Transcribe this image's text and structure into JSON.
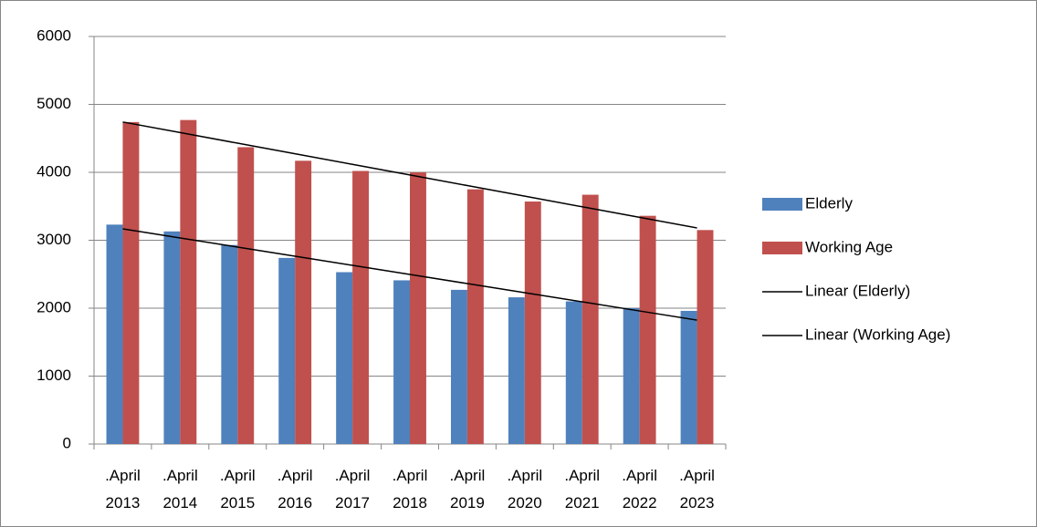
{
  "chart_data": {
    "type": "bar",
    "categories": [
      ".April 2013",
      ".April 2014",
      ".April 2015",
      ".April 2016",
      ".April 2017",
      ".April 2018",
      ".April 2019",
      ".April 2020",
      ".April 2021",
      ".April 2022",
      ".April 2023"
    ],
    "series": [
      {
        "name": "Elderly",
        "color": "#4f81bd",
        "values": [
          3230,
          3130,
          2930,
          2740,
          2530,
          2410,
          2270,
          2160,
          2100,
          2000,
          1960
        ],
        "trendline": "Linear (Elderly)"
      },
      {
        "name": "Working Age",
        "color": "#c0504d",
        "values": [
          4740,
          4770,
          4370,
          4170,
          4020,
          4000,
          3750,
          3570,
          3670,
          3360,
          3150
        ],
        "trendline": "Linear (Working Age)"
      }
    ],
    "trendline_color": "#000000",
    "ylim": [
      0,
      6000
    ],
    "yticks": [
      0,
      1000,
      2000,
      3000,
      4000,
      5000,
      6000
    ],
    "grid": true,
    "legend": "right"
  }
}
